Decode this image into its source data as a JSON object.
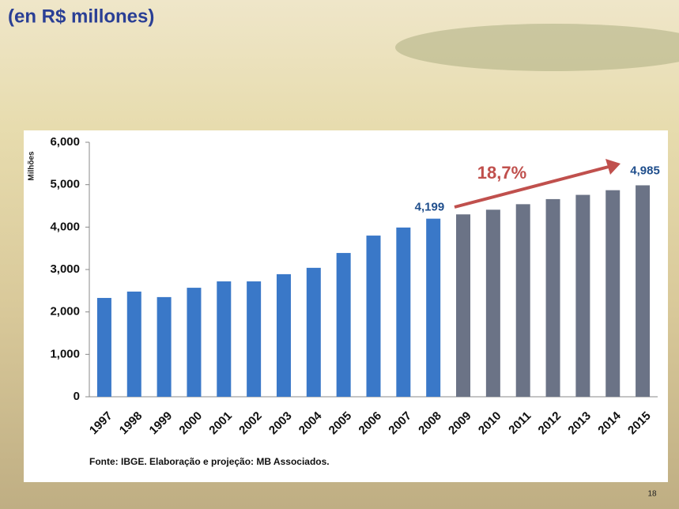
{
  "chart_data": {
    "type": "bar",
    "title": "(en R$ millones)",
    "y_label": "Milhões",
    "categories": [
      "1997",
      "1998",
      "1999",
      "2000",
      "2001",
      "2002",
      "2003",
      "2004",
      "2005",
      "2006",
      "2007",
      "2008",
      "2009",
      "2010",
      "2011",
      "2012",
      "2013",
      "2014",
      "2015"
    ],
    "values": [
      2330,
      2480,
      2350,
      2570,
      2720,
      2720,
      2890,
      3040,
      3390,
      3800,
      3990,
      4199,
      4300,
      4410,
      4540,
      4660,
      4760,
      4870,
      4985
    ],
    "value_labels": [
      null,
      null,
      null,
      null,
      null,
      null,
      null,
      null,
      null,
      null,
      null,
      "4,199",
      null,
      null,
      null,
      null,
      null,
      null,
      "4,985"
    ],
    "colors": [
      "#3a78c8",
      "#3a78c8",
      "#3a78c8",
      "#3a78c8",
      "#3a78c8",
      "#3a78c8",
      "#3a78c8",
      "#3a78c8",
      "#3a78c8",
      "#3a78c8",
      "#3a78c8",
      "#3a78c8",
      "#6b7386",
      "#6b7386",
      "#6b7386",
      "#6b7386",
      "#6b7386",
      "#6b7386",
      "#6b7386"
    ],
    "ylim": [
      0,
      6000
    ],
    "yticks": [
      0,
      {
        "value": 1000,
        "label": "1,000"
      },
      {
        "value": 2000,
        "label": "2,000"
      },
      {
        "value": 3000,
        "label": "3,000"
      },
      {
        "value": 4000,
        "label": "4,000"
      },
      {
        "value": 5000,
        "label": "5,000"
      },
      {
        "value": 6000,
        "label": "6,000"
      }
    ],
    "annotation": "18,7%",
    "source": "Fonte: IBGE. Elaboração e projeção: MB Associados.",
    "page_number": "18"
  }
}
